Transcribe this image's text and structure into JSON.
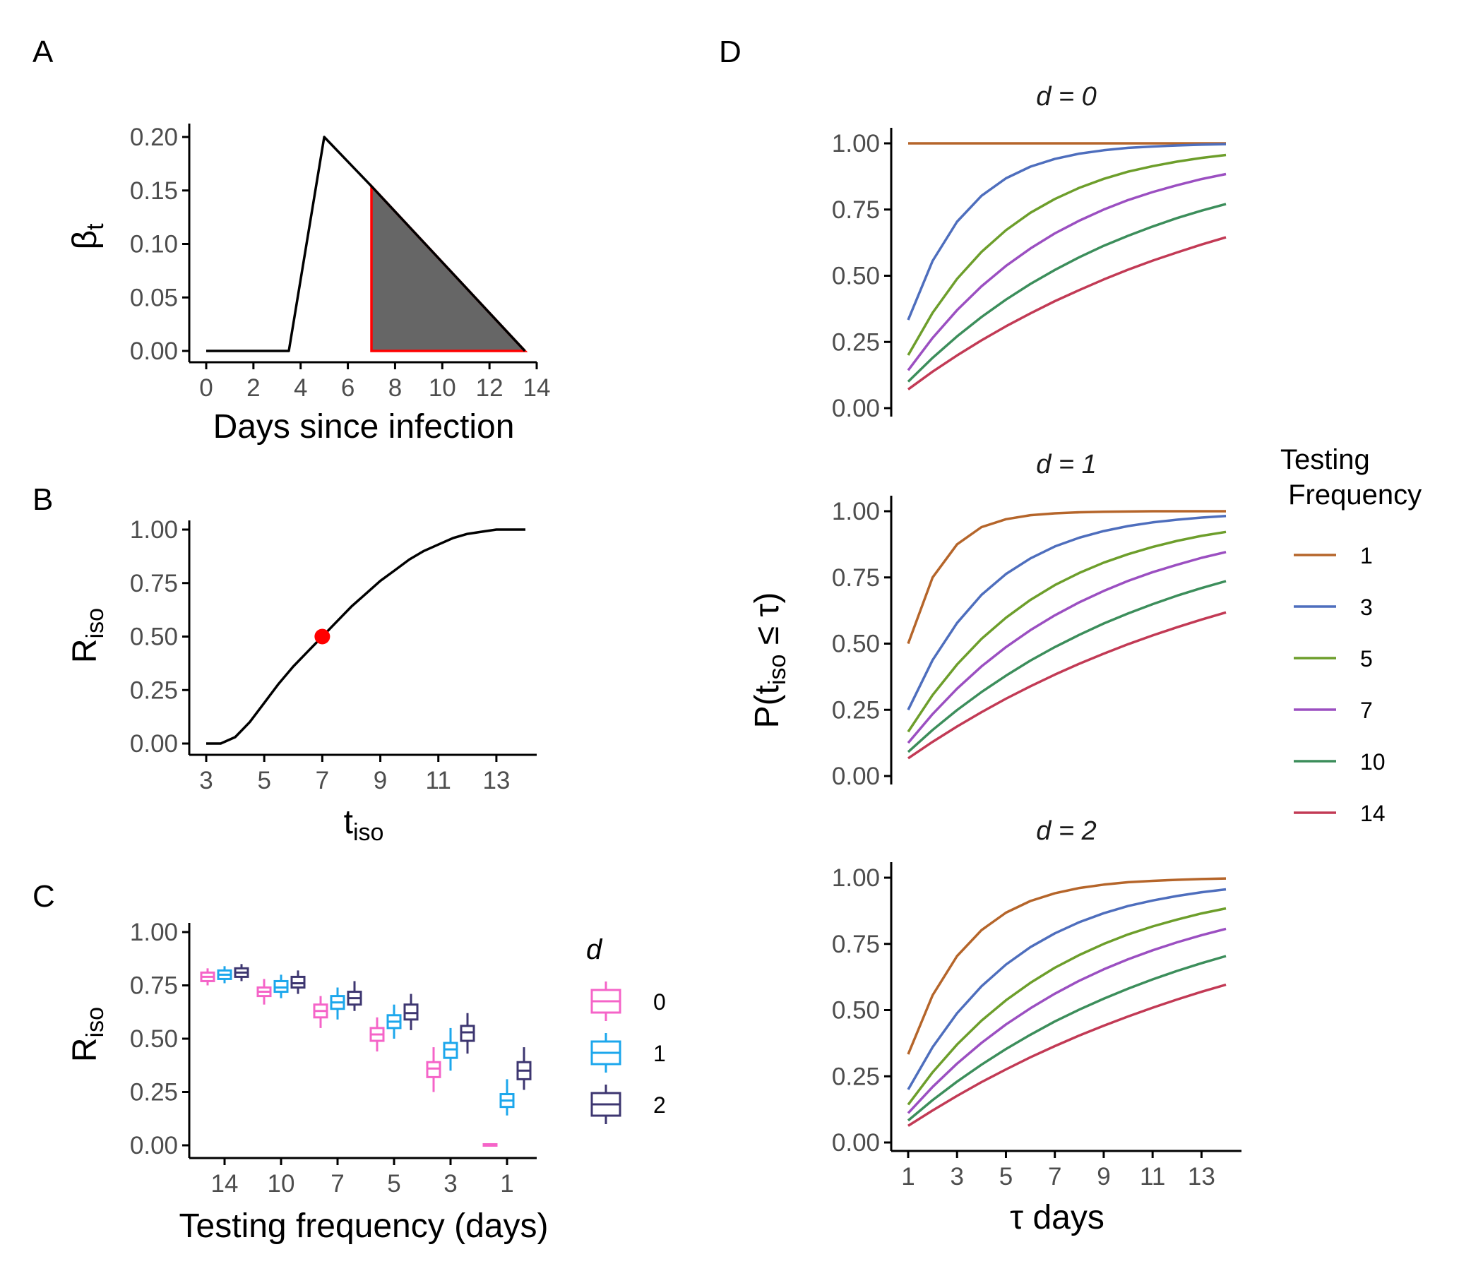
{
  "colors": {
    "axis": "#000000",
    "fill_dark": "#666666",
    "highlight_red": "#ff0000",
    "d0": "#f564c8",
    "d1": "#1ca7ec",
    "d2": "#3d3670",
    "freq1": "#b5652a",
    "freq3": "#4e6ebd",
    "freq5": "#6d9e2b",
    "freq7": "#9b4fc1",
    "freq10": "#3c8e5b",
    "freq14": "#c23a55"
  },
  "panels": {
    "a": "A",
    "b": "B",
    "c": "C",
    "d": "D"
  },
  "chart_data": [
    {
      "id": "A",
      "type": "line",
      "xlabel": "Days since infection",
      "ylabel": "β",
      "ylabel_sub": "t",
      "xlim": [
        0,
        14
      ],
      "ylim": [
        0,
        0.2
      ],
      "xticks": [
        "0",
        "2",
        "4",
        "6",
        "8",
        "10",
        "12",
        "14"
      ],
      "yticks": [
        "0.00",
        "0.05",
        "0.10",
        "0.15",
        "0.20"
      ],
      "line": {
        "x": [
          0,
          3.5,
          5,
          7,
          13.5
        ],
        "y": [
          0,
          0,
          0.2,
          0.154,
          0
        ]
      },
      "shaded_region": {
        "x": [
          7,
          7,
          13.5
        ],
        "y": [
          0,
          0.154,
          0
        ]
      }
    },
    {
      "id": "B",
      "type": "line",
      "xlabel": "t",
      "xlabel_sub": "iso",
      "ylabel": "R",
      "ylabel_sub": "iso",
      "xlim": [
        3,
        14
      ],
      "ylim": [
        0,
        1
      ],
      "xticks": [
        "3",
        "5",
        "7",
        "9",
        "11",
        "13"
      ],
      "yticks": [
        "0.00",
        "0.25",
        "0.50",
        "0.75",
        "1.00"
      ],
      "curve": {
        "x": [
          3,
          3.5,
          4,
          4.5,
          5,
          5.5,
          6,
          6.5,
          7,
          7.5,
          8,
          8.5,
          9,
          9.5,
          10,
          10.5,
          11,
          11.5,
          12,
          12.5,
          13,
          13.5,
          14
        ],
        "y": [
          0,
          0,
          0.03,
          0.1,
          0.19,
          0.28,
          0.36,
          0.43,
          0.5,
          0.57,
          0.64,
          0.7,
          0.76,
          0.81,
          0.86,
          0.9,
          0.93,
          0.96,
          0.98,
          0.99,
          1.0,
          1.0,
          1.0
        ]
      },
      "highlight_point": {
        "x": 7,
        "y": 0.5
      }
    },
    {
      "id": "C",
      "type": "box",
      "xlabel": "Testing frequency (days)",
      "ylabel": "R",
      "ylabel_sub": "iso",
      "ylim": [
        0,
        1
      ],
      "yticks": [
        "0.00",
        "0.25",
        "0.50",
        "0.75",
        "1.00"
      ],
      "categories": [
        "14",
        "10",
        "7",
        "5",
        "3",
        "1"
      ],
      "legend": {
        "title": "d",
        "position": "right",
        "entries": [
          "0",
          "1",
          "2"
        ]
      },
      "series": [
        {
          "name": "0",
          "boxes": [
            {
              "min": 0.75,
              "q1": 0.77,
              "median": 0.79,
              "q3": 0.81,
              "max": 0.83
            },
            {
              "min": 0.66,
              "q1": 0.7,
              "median": 0.72,
              "q3": 0.74,
              "max": 0.78
            },
            {
              "min": 0.55,
              "q1": 0.6,
              "median": 0.63,
              "q3": 0.66,
              "max": 0.7
            },
            {
              "min": 0.44,
              "q1": 0.49,
              "median": 0.52,
              "q3": 0.55,
              "max": 0.6
            },
            {
              "min": 0.25,
              "q1": 0.32,
              "median": 0.36,
              "q3": 0.39,
              "max": 0.46
            },
            {
              "min": 0.0,
              "q1": 0.0,
              "median": 0.0,
              "q3": 0.005,
              "max": 0.01
            }
          ]
        },
        {
          "name": "1",
          "boxes": [
            {
              "min": 0.76,
              "q1": 0.78,
              "median": 0.8,
              "q3": 0.82,
              "max": 0.84
            },
            {
              "min": 0.69,
              "q1": 0.72,
              "median": 0.74,
              "q3": 0.77,
              "max": 0.8
            },
            {
              "min": 0.59,
              "q1": 0.64,
              "median": 0.67,
              "q3": 0.7,
              "max": 0.74
            },
            {
              "min": 0.5,
              "q1": 0.55,
              "median": 0.58,
              "q3": 0.61,
              "max": 0.66
            },
            {
              "min": 0.35,
              "q1": 0.41,
              "median": 0.45,
              "q3": 0.48,
              "max": 0.55
            },
            {
              "min": 0.14,
              "q1": 0.18,
              "median": 0.21,
              "q3": 0.24,
              "max": 0.31
            }
          ]
        },
        {
          "name": "2",
          "boxes": [
            {
              "min": 0.77,
              "q1": 0.79,
              "median": 0.81,
              "q3": 0.83,
              "max": 0.85
            },
            {
              "min": 0.71,
              "q1": 0.74,
              "median": 0.76,
              "q3": 0.79,
              "max": 0.82
            },
            {
              "min": 0.63,
              "q1": 0.66,
              "median": 0.69,
              "q3": 0.72,
              "max": 0.77
            },
            {
              "min": 0.54,
              "q1": 0.59,
              "median": 0.62,
              "q3": 0.66,
              "max": 0.71
            },
            {
              "min": 0.43,
              "q1": 0.49,
              "median": 0.53,
              "q3": 0.56,
              "max": 0.62
            },
            {
              "min": 0.26,
              "q1": 0.31,
              "median": 0.35,
              "q3": 0.39,
              "max": 0.46
            }
          ]
        }
      ]
    },
    {
      "id": "D",
      "type": "line",
      "facet_label": "d",
      "facets": [
        "0",
        "1",
        "2"
      ],
      "xlabel": "τ days",
      "ylabel": "P(",
      "ylabel_t": "t",
      "ylabel_sub": "iso",
      "ylabel_rest": " ≤ τ)",
      "xlim": [
        1,
        14
      ],
      "ylim": [
        0,
        1
      ],
      "xticks": [
        "1",
        "3",
        "5",
        "7",
        "9",
        "11",
        "13"
      ],
      "yticks": [
        "0.00",
        "0.25",
        "0.50",
        "0.75",
        "1.00"
      ],
      "legend": {
        "title": [
          "Testing",
          " Frequency"
        ],
        "position": "right",
        "entries": [
          "1",
          "3",
          "5",
          "7",
          "10",
          "14"
        ]
      },
      "x": [
        1,
        2,
        3,
        4,
        5,
        6,
        7,
        8,
        9,
        10,
        11,
        12,
        13,
        14
      ],
      "series": [
        {
          "name": "1",
          "facet_values": [
            [
              1,
              1,
              1,
              1,
              1,
              1,
              1,
              1,
              1,
              1,
              1,
              1,
              1,
              1
            ],
            [
              0.5,
              0.75,
              0.875,
              0.94,
              0.97,
              0.985,
              0.992,
              0.996,
              0.998,
              0.999,
              1,
              1,
              1,
              1
            ],
            [
              0.333,
              0.556,
              0.704,
              0.802,
              0.868,
              0.912,
              0.941,
              0.961,
              0.974,
              0.983,
              0.988,
              0.992,
              0.995,
              0.997
            ]
          ]
        },
        {
          "name": "3",
          "facet_values": [
            [
              0.333,
              0.556,
              0.704,
              0.802,
              0.868,
              0.912,
              0.941,
              0.961,
              0.974,
              0.983,
              0.988,
              0.992,
              0.995,
              0.997
            ],
            [
              0.25,
              0.438,
              0.578,
              0.684,
              0.763,
              0.822,
              0.867,
              0.9,
              0.925,
              0.944,
              0.958,
              0.968,
              0.976,
              0.982
            ],
            [
              0.2,
              0.36,
              0.488,
              0.59,
              0.672,
              0.738,
              0.79,
              0.832,
              0.866,
              0.893,
              0.914,
              0.931,
              0.945,
              0.956
            ]
          ]
        },
        {
          "name": "5",
          "facet_values": [
            [
              0.2,
              0.36,
              0.488,
              0.59,
              0.672,
              0.738,
              0.79,
              0.832,
              0.866,
              0.893,
              0.914,
              0.931,
              0.945,
              0.956
            ],
            [
              0.167,
              0.306,
              0.421,
              0.518,
              0.598,
              0.665,
              0.721,
              0.767,
              0.806,
              0.838,
              0.865,
              0.888,
              0.907,
              0.922
            ],
            [
              0.143,
              0.265,
              0.37,
              0.46,
              0.537,
              0.603,
              0.66,
              0.708,
              0.75,
              0.786,
              0.816,
              0.842,
              0.865,
              0.884
            ]
          ]
        },
        {
          "name": "7",
          "facet_values": [
            [
              0.143,
              0.265,
              0.37,
              0.46,
              0.537,
              0.603,
              0.66,
              0.708,
              0.75,
              0.786,
              0.816,
              0.842,
              0.865,
              0.884
            ],
            [
              0.125,
              0.234,
              0.33,
              0.414,
              0.487,
              0.551,
              0.607,
              0.656,
              0.699,
              0.737,
              0.77,
              0.798,
              0.824,
              0.846
            ],
            [
              0.111,
              0.21,
              0.298,
              0.376,
              0.446,
              0.507,
              0.562,
              0.611,
              0.654,
              0.692,
              0.726,
              0.756,
              0.783,
              0.807
            ]
          ]
        },
        {
          "name": "10",
          "facet_values": [
            [
              0.1,
              0.19,
              0.271,
              0.344,
              0.41,
              0.469,
              0.522,
              0.57,
              0.613,
              0.651,
              0.686,
              0.718,
              0.746,
              0.771
            ],
            [
              0.091,
              0.174,
              0.249,
              0.317,
              0.379,
              0.436,
              0.487,
              0.533,
              0.576,
              0.614,
              0.649,
              0.681,
              0.71,
              0.736
            ],
            [
              0.083,
              0.16,
              0.23,
              0.294,
              0.353,
              0.407,
              0.457,
              0.502,
              0.543,
              0.581,
              0.616,
              0.648,
              0.677,
              0.704
            ]
          ]
        },
        {
          "name": "14",
          "facet_values": [
            [
              0.071,
              0.138,
              0.199,
              0.256,
              0.309,
              0.358,
              0.404,
              0.446,
              0.486,
              0.523,
              0.557,
              0.588,
              0.618,
              0.645
            ],
            [
              0.067,
              0.129,
              0.187,
              0.241,
              0.292,
              0.339,
              0.383,
              0.424,
              0.462,
              0.498,
              0.531,
              0.562,
              0.591,
              0.618
            ],
            [
              0.063,
              0.121,
              0.176,
              0.228,
              0.276,
              0.322,
              0.364,
              0.404,
              0.441,
              0.476,
              0.509,
              0.54,
              0.569,
              0.596
            ]
          ]
        }
      ]
    }
  ]
}
